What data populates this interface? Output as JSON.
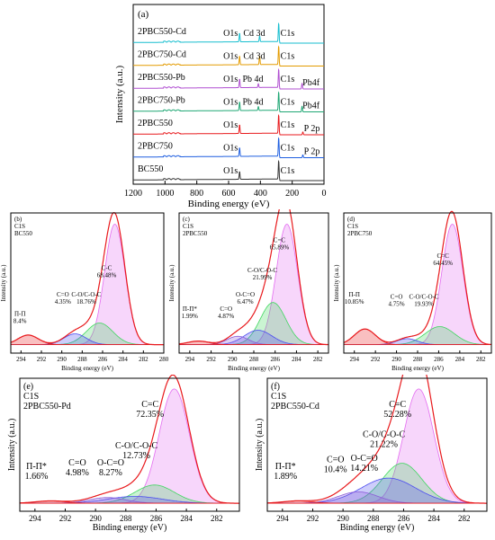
{
  "chart_data": [
    {
      "id": "a",
      "type": "line",
      "panel_label": "(a)",
      "xlabel": "Binding energy (eV)",
      "ylabel": "Intensity (a.u.)",
      "xlim": [
        1200,
        0
      ],
      "x_ticks": [
        1200,
        1000,
        800,
        600,
        400,
        200,
        0
      ],
      "series": [
        {
          "name": "2PBC550-Cd",
          "color": "#17becf",
          "peaks": [
            {
              "label": "O1s",
              "x": 531,
              "h": 0.45
            },
            {
              "label": "Cd 3d",
              "x": 405,
              "h": 0.3
            },
            {
              "label": "C1s",
              "x": 284.8,
              "h": 1.0
            }
          ]
        },
        {
          "name": "2PBC750-Cd",
          "color": "#e39b00",
          "peaks": [
            {
              "label": "O1s",
              "x": 531,
              "h": 0.45
            },
            {
              "label": "Cd 3d",
              "x": 405,
              "h": 0.45
            },
            {
              "label": "C1s",
              "x": 284.8,
              "h": 1.0
            }
          ]
        },
        {
          "name": "2PBC550-Pb",
          "color": "#b04fd1",
          "peaks": [
            {
              "label": "O1s",
              "x": 531,
              "h": 0.45
            },
            {
              "label": "Pb 4d",
              "x": 413,
              "h": 0.2
            },
            {
              "label": "C1s",
              "x": 284.8,
              "h": 1.0
            },
            {
              "label": "Pb4f",
              "x": 138,
              "h": 0.3
            }
          ]
        },
        {
          "name": "2PBC750-Pb",
          "color": "#1fa774",
          "peaks": [
            {
              "label": "O1s",
              "x": 531,
              "h": 0.45
            },
            {
              "label": "Pb 4d",
              "x": 413,
              "h": 0.2
            },
            {
              "label": "C1s",
              "x": 284.8,
              "h": 1.0
            },
            {
              "label": "Pb4f",
              "x": 138,
              "h": 0.3
            }
          ]
        },
        {
          "name": "2PBC550",
          "color": "#e8191c",
          "peaks": [
            {
              "label": "O1s",
              "x": 531,
              "h": 0.45
            },
            {
              "label": "C1s",
              "x": 284.8,
              "h": 1.0
            },
            {
              "label": "P 2p",
              "x": 133,
              "h": 0.15
            }
          ]
        },
        {
          "name": "2PBC750",
          "color": "#1f5fe0",
          "peaks": [
            {
              "label": "O1s",
              "x": 531,
              "h": 0.45
            },
            {
              "label": "C1s",
              "x": 284.8,
              "h": 1.0
            },
            {
              "label": "P 2p",
              "x": 133,
              "h": 0.15
            }
          ]
        },
        {
          "name": "BC550",
          "color": "#333333",
          "peaks": [
            {
              "label": "O1s",
              "x": 531,
              "h": 0.4
            },
            {
              "label": "C1s",
              "x": 284.8,
              "h": 1.0
            }
          ]
        }
      ]
    },
    {
      "id": "b",
      "type": "area",
      "panel_label": "(b)",
      "title_lines": [
        "C1S",
        "BC550"
      ],
      "xlabel": "Binding energy (eV)",
      "ylabel": "Intensity (a.u.)",
      "xlim": [
        295,
        280
      ],
      "x_ticks": [
        294,
        292,
        290,
        288,
        286,
        284,
        282,
        280
      ],
      "components": [
        {
          "name": "C-C",
          "center": 284.8,
          "height": 1.0,
          "width": 1.0,
          "percent": "68.48%",
          "color": "#e36cf0",
          "label": "C-C",
          "label_pos": [
            285.6,
            0.62
          ]
        },
        {
          "name": "C-O/C-O-C",
          "center": 286.3,
          "height": 0.18,
          "width": 1.3,
          "percent": "18.76%",
          "color": "#3fd65f",
          "label": "C-O/C-O-C",
          "label_pos": [
            287.6,
            0.4
          ]
        },
        {
          "name": "C=O",
          "center": 288.7,
          "height": 0.09,
          "width": 1.1,
          "percent": "4.35%",
          "color": "#4b4bf0",
          "label": "C=O",
          "label_pos": [
            289.9,
            0.4
          ]
        },
        {
          "name": "Π-Π",
          "center": 293.3,
          "height": 0.08,
          "width": 1.0,
          "percent": "8.4%",
          "color": "#e8191c",
          "label": "Π-Π",
          "label_pos": [
            294.1,
            0.24
          ]
        }
      ]
    },
    {
      "id": "c",
      "type": "area",
      "panel_label": "(c)",
      "title_lines": [
        "C1S",
        "2PBC550"
      ],
      "xlabel": "Binding energy (eV)",
      "ylabel": "Intensity (a.u.)",
      "xlim": [
        295,
        281
      ],
      "x_ticks": [
        294,
        292,
        290,
        288,
        286,
        284,
        282
      ],
      "components": [
        {
          "name": "C=C",
          "center": 284.9,
          "height": 1.0,
          "width": 1.0,
          "percent": "65.89%",
          "color": "#e36cf0",
          "label": "C=C",
          "label_pos": [
            285.6,
            0.85
          ]
        },
        {
          "name": "C-O/C-O-C",
          "center": 286.2,
          "height": 0.35,
          "width": 1.2,
          "percent": "21.99%",
          "color": "#3fd65f",
          "label": "C-O/C-O-C",
          "label_pos": [
            287.2,
            0.6
          ]
        },
        {
          "name": "O-C=O",
          "center": 287.6,
          "height": 0.12,
          "width": 1.3,
          "percent": "6.47%",
          "color": "#4b4bf0",
          "label": "O-C=O",
          "label_pos": [
            288.8,
            0.4
          ]
        },
        {
          "name": "C=O",
          "center": 289.5,
          "height": 0.07,
          "width": 1.0,
          "percent": "4.87%",
          "color": "#8a5bd8",
          "label": "C=O",
          "label_pos": [
            290.6,
            0.28
          ]
        },
        {
          "name": "Π-Π*",
          "center": 293.2,
          "height": 0.03,
          "width": 1.0,
          "percent": "1.99%",
          "color": "#e8191c",
          "label": "Π-Π*",
          "label_pos": [
            294.0,
            0.28
          ]
        }
      ]
    },
    {
      "id": "d",
      "type": "area",
      "panel_label": "(d)",
      "title_lines": [
        "C1S",
        "2PBC750"
      ],
      "xlabel": "Binding energy (eV)",
      "ylabel": "Intensity (a.u.)",
      "xlim": [
        295,
        281
      ],
      "x_ticks": [
        294,
        292,
        290,
        288,
        286,
        284,
        282
      ],
      "components": [
        {
          "name": "C=C",
          "center": 284.7,
          "height": 1.0,
          "width": 1.0,
          "percent": "64.45%",
          "color": "#e36cf0",
          "label": "C=C",
          "label_pos": [
            285.6,
            0.72
          ]
        },
        {
          "name": "C-O/C-O-C",
          "center": 285.9,
          "height": 0.15,
          "width": 1.4,
          "percent": "19.93%",
          "color": "#3fd65f",
          "label": "C-O/C-O-C",
          "label_pos": [
            287.4,
            0.38
          ]
        },
        {
          "name": "C=O",
          "center": 289.0,
          "height": 0.05,
          "width": 1.0,
          "percent": "4.75%",
          "color": "#4b4bf0",
          "label": "C=O",
          "label_pos": [
            290.0,
            0.38
          ]
        },
        {
          "name": "Π-Π",
          "center": 293.0,
          "height": 0.13,
          "width": 1.0,
          "percent": "10.85%",
          "color": "#e8191c",
          "label": "Π-Π",
          "label_pos": [
            294.0,
            0.4
          ]
        }
      ]
    },
    {
      "id": "e",
      "type": "area",
      "panel_label": "(e)",
      "title_lines": [
        "C1S",
        "2PBC550-Pd"
      ],
      "xlabel": "Binding energy (eV)",
      "ylabel": "Intensity (a.u.)",
      "xlim": [
        295,
        280.5
      ],
      "x_ticks": [
        294,
        292,
        290,
        288,
        286,
        284,
        282
      ],
      "components": [
        {
          "name": "C=C",
          "center": 284.8,
          "height": 1.0,
          "width": 1.0,
          "percent": "72.35%",
          "color": "#e36cf0",
          "label": "C=C",
          "label_pos": [
            286.4,
            0.84
          ]
        },
        {
          "name": "C-O/C-O-C",
          "center": 286.1,
          "height": 0.16,
          "width": 1.3,
          "percent": "12.73%",
          "color": "#3fd65f",
          "label": "C-O/C-O-C",
          "label_pos": [
            287.3,
            0.48
          ]
        },
        {
          "name": "O-C=O",
          "center": 287.4,
          "height": 0.06,
          "width": 1.8,
          "percent": "8.27%",
          "color": "#4b4bf0",
          "label": "O-C=O",
          "label_pos": [
            289.0,
            0.33
          ]
        },
        {
          "name": "C=O",
          "center": 289.2,
          "height": 0.05,
          "width": 1.2,
          "percent": "4.98%",
          "color": "#8a5bd8",
          "label": "C=O",
          "label_pos": [
            291.2,
            0.33
          ]
        },
        {
          "name": "Π-Π*",
          "center": 293.0,
          "height": 0.02,
          "width": 1.0,
          "percent": "1.66%",
          "color": "#e8191c",
          "label": "Π-Π*",
          "label_pos": [
            293.9,
            0.3
          ]
        }
      ]
    },
    {
      "id": "f",
      "type": "area",
      "panel_label": "(f)",
      "title_lines": [
        "C1S",
        "2PBC550-Cd"
      ],
      "xlabel": "Binding energy (eV)",
      "ylabel": "Intensity (a.u.)",
      "xlim": [
        295,
        280.5
      ],
      "x_ticks": [
        294,
        292,
        290,
        288,
        286,
        284,
        282
      ],
      "components": [
        {
          "name": "C=C",
          "center": 285.0,
          "height": 1.0,
          "width": 1.0,
          "percent": "52.28%",
          "color": "#e36cf0",
          "label": "C=C",
          "label_pos": [
            286.4,
            0.84
          ]
        },
        {
          "name": "C-O/C-O-C",
          "center": 286.1,
          "height": 0.35,
          "width": 1.3,
          "percent": "21.22%",
          "color": "#3fd65f",
          "label": "C-O/C-O-C",
          "label_pos": [
            287.3,
            0.58
          ]
        },
        {
          "name": "O-C=O",
          "center": 287.0,
          "height": 0.22,
          "width": 1.8,
          "percent": "14.21%",
          "color": "#4b4bf0",
          "label": "O-C=O",
          "label_pos": [
            288.6,
            0.37
          ]
        },
        {
          "name": "C=O",
          "center": 289.0,
          "height": 0.1,
          "width": 1.3,
          "percent": "10.4%",
          "color": "#8a5bd8",
          "label": "C=O",
          "label_pos": [
            290.5,
            0.36
          ]
        },
        {
          "name": "Π-Π*",
          "center": 293.0,
          "height": 0.02,
          "width": 1.0,
          "percent": "1.89%",
          "color": "#e8191c",
          "label": "Π-Π*",
          "label_pos": [
            293.8,
            0.3
          ]
        }
      ]
    }
  ]
}
